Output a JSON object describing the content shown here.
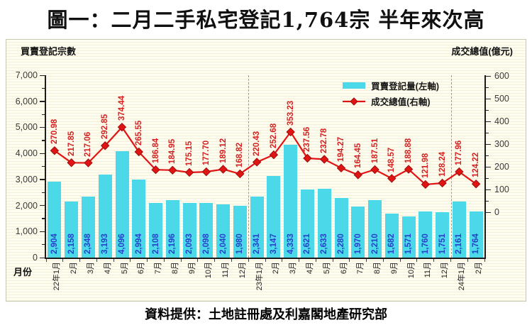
{
  "page": {
    "title": "圖一：二月二手私宅登記1,764宗 半年來次高",
    "footer": "資料提供：土地註冊處及利嘉閣地產研究部"
  },
  "chart_data": {
    "type": "bar",
    "subtype": "combo-bar-line-dual-axis",
    "x_axis_title": "月份",
    "left_axis": {
      "title": "買賣登記宗數",
      "min": 0,
      "max": 7000,
      "major_tick": 1000,
      "minor_tick": 500
    },
    "right_axis": {
      "title": "成交總值(億元)",
      "min": 0,
      "max": 600,
      "major_tick": 100,
      "minor_tick": 50
    },
    "categories": [
      "22年1月",
      "2月",
      "3月",
      "4月",
      "5月",
      "6月",
      "7月",
      "8月",
      "9月",
      "10月",
      "11月",
      "12月",
      "23年1月",
      "2月",
      "3月",
      "4月",
      "5月",
      "6月",
      "7月",
      "8月",
      "9月",
      "10月",
      "11月",
      "12月",
      "24年1月",
      "2月"
    ],
    "series": [
      {
        "name": "買賣登記量(左軸)",
        "type": "bar",
        "axis": "left",
        "color": "#4bd9ea",
        "values": [
          2904,
          2158,
          2348,
          3193,
          4096,
          2994,
          2108,
          2196,
          2093,
          2098,
          2040,
          1980,
          2341,
          3147,
          4333,
          2621,
          2633,
          2280,
          1970,
          2210,
          1682,
          1571,
          1760,
          1751,
          2161,
          1764
        ]
      },
      {
        "name": "成交總值(右軸)",
        "type": "line",
        "axis": "right",
        "color": "#e11414",
        "values": [
          270.98,
          217.85,
          217.06,
          292.85,
          374.44,
          265.55,
          186.84,
          184.95,
          175.15,
          177.7,
          189.12,
          168.82,
          220.43,
          252.68,
          353.23,
          237.56,
          232.78,
          194.27,
          164.45,
          187.51,
          148.57,
          188.88,
          121.98,
          128.24,
          177.96,
          124.22
        ]
      }
    ],
    "legend_position": "top-right-inside",
    "grid": false,
    "year_separator_before_indices": [
      12,
      24
    ]
  },
  "colors": {
    "panel_background": "#fffdef",
    "panel_stripe": "#f4efd9",
    "bar": "#4bd9ea",
    "bar_label": "#2740cc",
    "line": "#e11414",
    "line_label": "#d42020",
    "axis_text": "#3a3a3a"
  }
}
